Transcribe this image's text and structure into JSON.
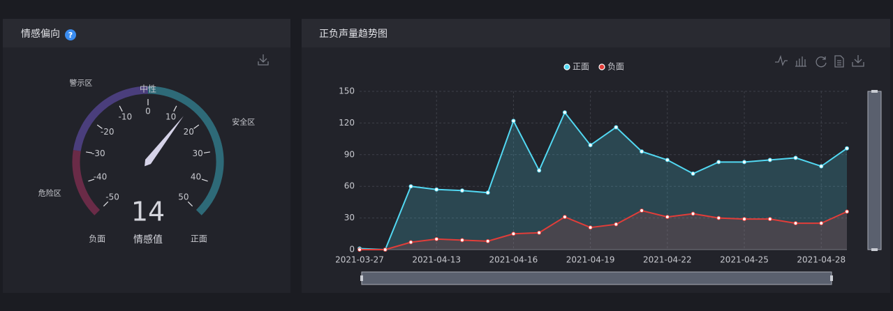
{
  "chart_data": [
    {
      "type": "gauge",
      "title": "情感偏向",
      "help_icon": "?",
      "value": 14,
      "value_caption": "情感值",
      "ylim": [
        -50,
        50
      ],
      "yticks": [
        -50,
        -40,
        -30,
        -20,
        -10,
        0,
        10,
        20,
        30,
        40,
        50
      ],
      "min_label": "负面",
      "max_label": "正面",
      "center_label": "中性",
      "zones": [
        {
          "name": "危险区",
          "range": [
            -50,
            -30
          ],
          "color": "#6a2b47"
        },
        {
          "name": "警示区",
          "range": [
            -30,
            0
          ],
          "color": "#4a3e7c"
        },
        {
          "name": "安全区",
          "range": [
            0,
            50
          ],
          "color": "#2e6a78"
        }
      ],
      "needle_color": "#d6d3e8"
    },
    {
      "type": "line",
      "title": "正负声量趋势图",
      "categories": [
        "2021-03-27",
        null,
        null,
        "2021-04-13",
        null,
        null,
        "2021-04-16",
        null,
        null,
        "2021-04-19",
        null,
        null,
        "2021-04-22",
        null,
        null,
        "2021-04-25",
        null,
        null,
        "2021-04-28",
        null
      ],
      "series": [
        {
          "name": "正面",
          "color": "#52d8f2",
          "values": [
            1,
            0,
            60,
            57,
            56,
            54,
            122,
            75,
            130,
            99,
            116,
            93,
            85,
            72,
            83,
            83,
            85,
            87,
            79,
            96
          ]
        },
        {
          "name": "负面",
          "color": "#e23d39",
          "values": [
            0,
            0,
            7,
            10,
            9,
            8,
            15,
            16,
            31,
            21,
            24,
            37,
            31,
            34,
            30,
            29,
            29,
            25,
            25,
            36
          ]
        }
      ],
      "ylim": [
        0,
        150
      ],
      "yticks": [
        0,
        30,
        60,
        90,
        120,
        150
      ],
      "grid": true,
      "legend": "top",
      "area": true
    }
  ]
}
